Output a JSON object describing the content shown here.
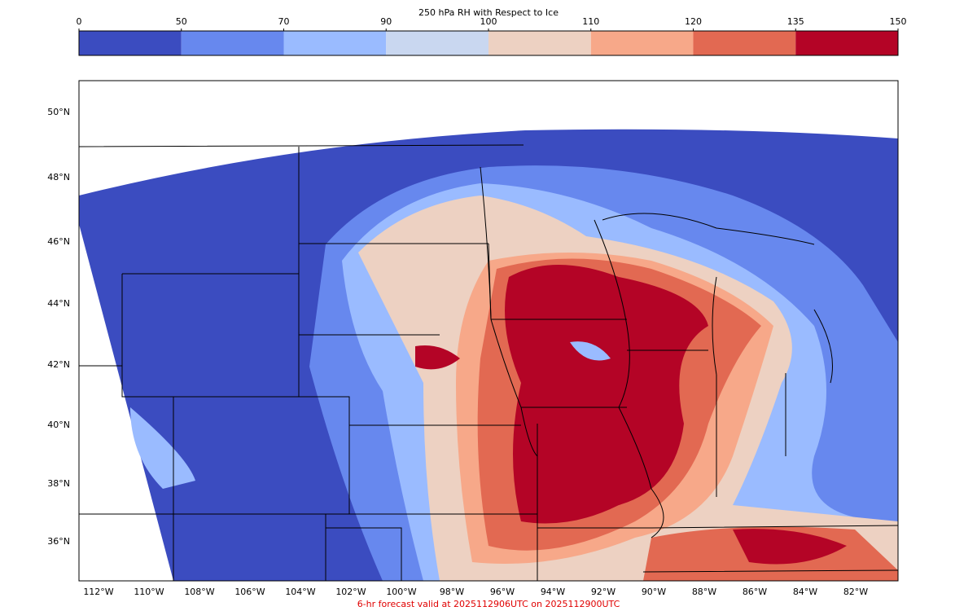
{
  "colorbar": {
    "title": "250 hPa RH with Respect to Ice",
    "ticks": [
      0,
      50,
      70,
      90,
      100,
      110,
      120,
      135,
      150
    ],
    "colors": [
      "#3b4cc0",
      "#6788ee",
      "#9abbff",
      "#c9d7f0",
      "#edd1c2",
      "#f7a889",
      "#e26952",
      "#b40426"
    ]
  },
  "map": {
    "lat_labels": [
      "50°N",
      "48°N",
      "46°N",
      "44°N",
      "42°N",
      "40°N",
      "38°N",
      "36°N"
    ],
    "lon_labels": [
      "112°W",
      "110°W",
      "108°W",
      "106°W",
      "104°W",
      "102°W",
      "100°W",
      "98°W",
      "96°W",
      "94°W",
      "92°W",
      "90°W",
      "88°W",
      "86°W",
      "84°W",
      "82°W"
    ]
  },
  "footer": "6-hr forecast valid at 2025112906UTC on 2025112900UTC"
}
